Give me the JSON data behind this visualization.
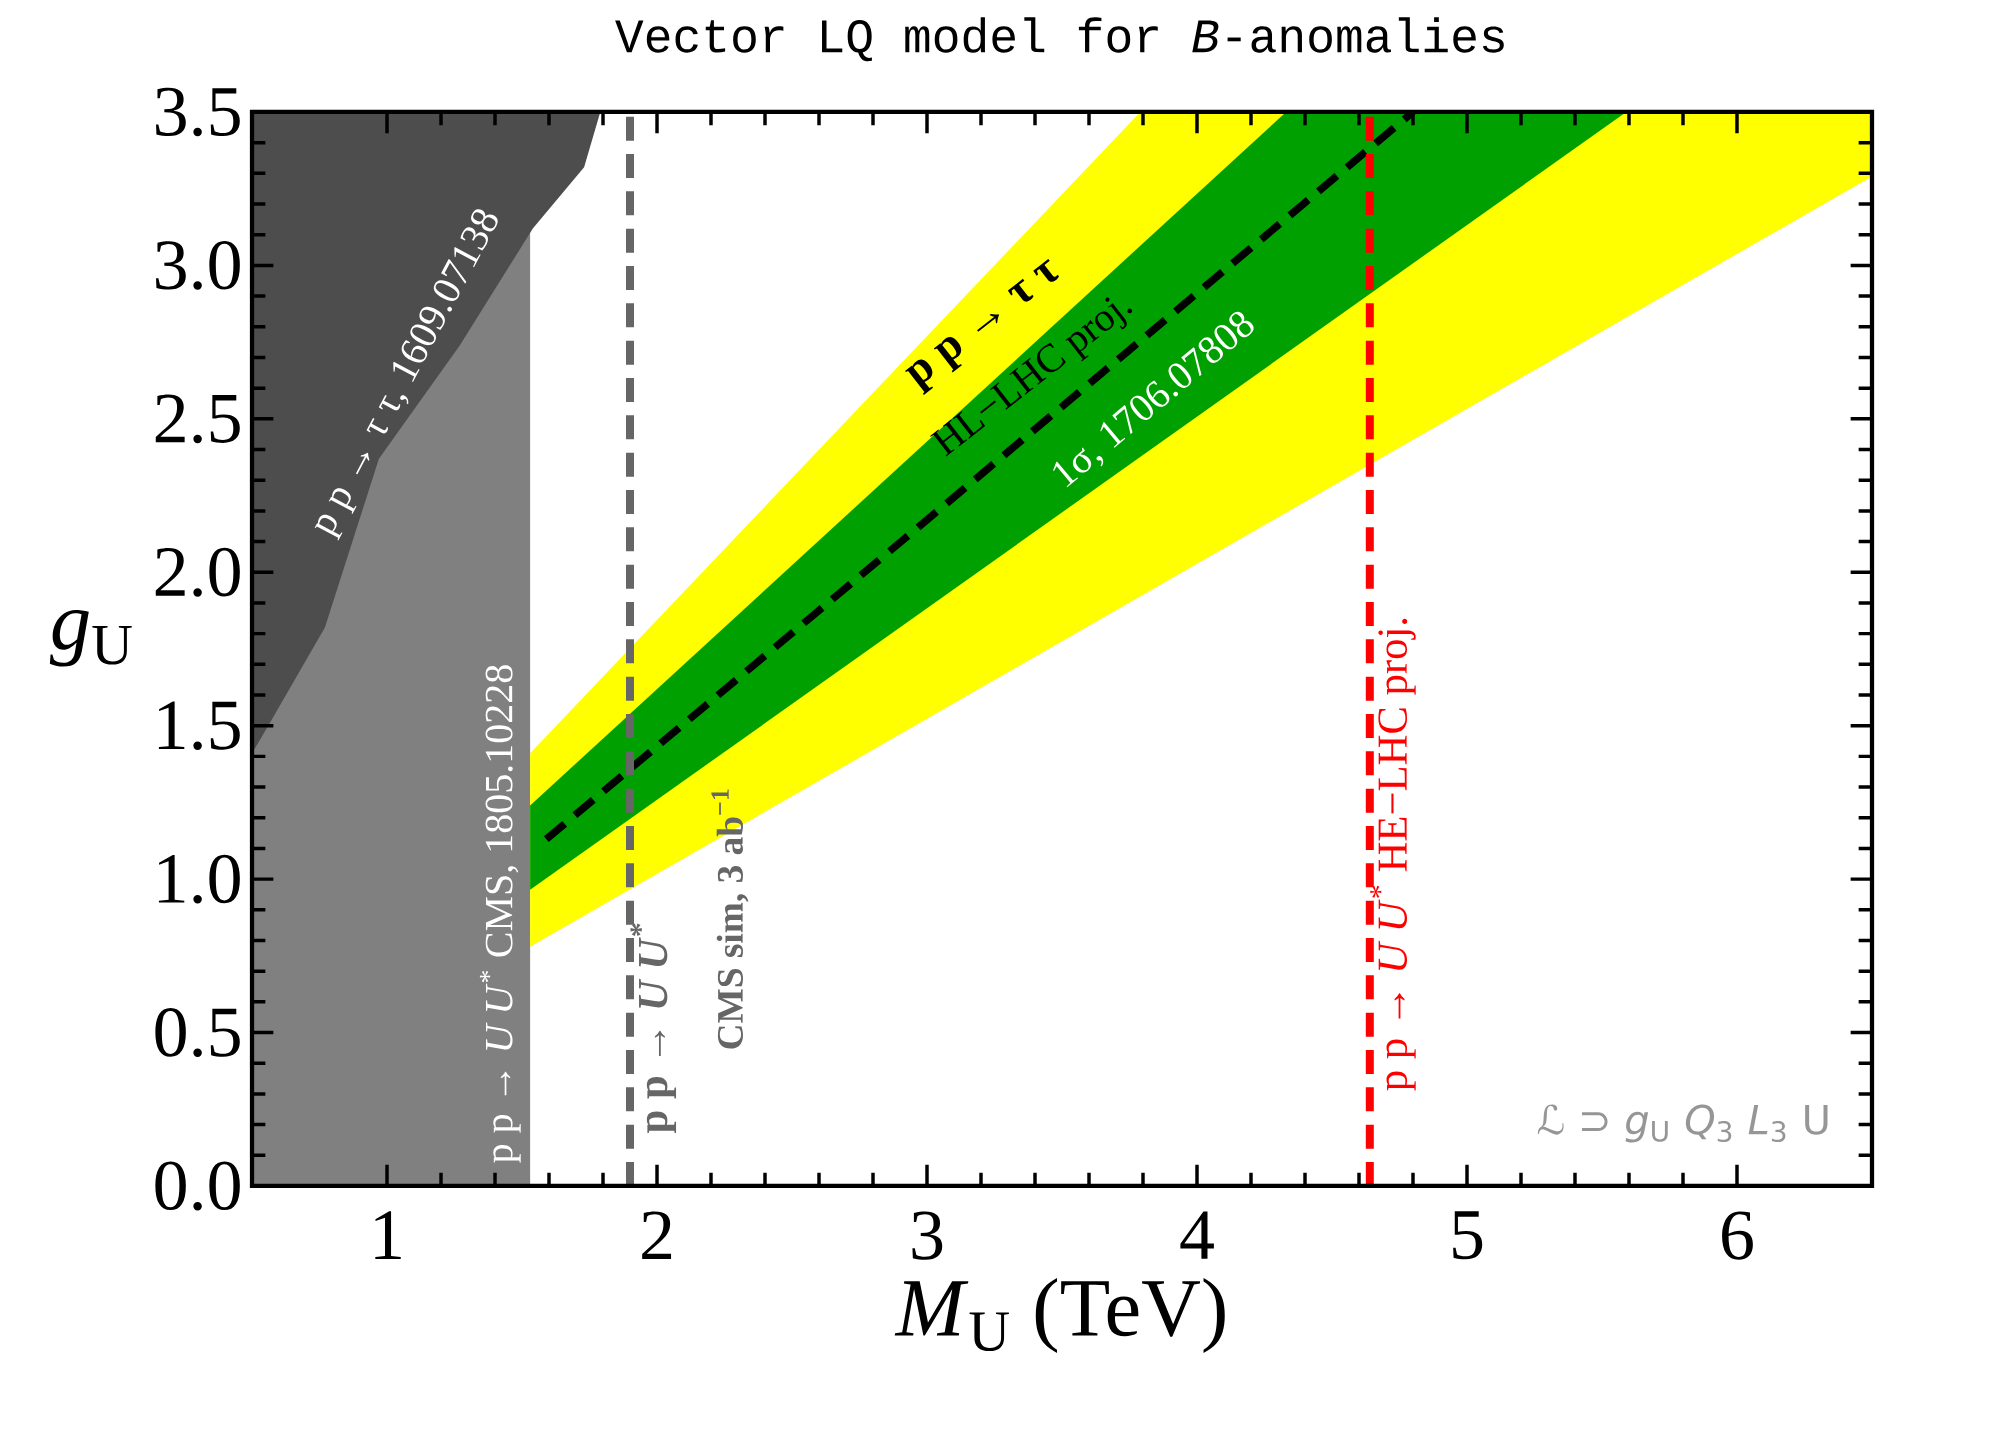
{
  "chart_data": {
    "type": "area",
    "title": "Vector LQ model for *B*-anomalies",
    "xlabel": "*M*$_{U}$ (TeV)",
    "ylabel": "*g*$_{U}$",
    "xlim": [
      0.5,
      6.5
    ],
    "ylim": [
      0,
      3.5
    ],
    "xticks": [
      1,
      2,
      3,
      4,
      5,
      6
    ],
    "yticks": [
      {
        "value": 0,
        "label": "0.0"
      },
      {
        "value": 0.5,
        "label": "0.5"
      },
      {
        "value": 1,
        "label": "1.0"
      },
      {
        "value": 1.5,
        "label": "1.5"
      },
      {
        "value": 2,
        "label": "2.0"
      },
      {
        "value": 2.5,
        "label": "2.5"
      },
      {
        "value": 3,
        "label": "3.0"
      },
      {
        "value": 3.5,
        "label": "3.5"
      }
    ],
    "bands": [
      {
        "axis": "x",
        "from": 0.5,
        "to": 1.53,
        "label": "p p → *U U*$^{*}$ CMS, 1805.10228",
        "color": "#808080"
      }
    ],
    "series": [
      {
        "color": "#4d4d4d",
        "x": [
          0.5,
          0.56,
          0.77,
          0.97,
          1.27,
          1.54,
          1.73,
          1.79,
          0.5
        ],
        "values": [
          1.41,
          1.5,
          1.82,
          2.37,
          2.74,
          3.12,
          3.32,
          3.5,
          3.5
        ]
      },
      {
        "color": "#ffff00",
        "x": [
          1.53,
          6.5,
          6.5,
          3.79,
          1.53
        ],
        "values": [
          0.78,
          3.29,
          3.5,
          3.5,
          1.41
        ]
      },
      {
        "color": "#00a000",
        "x": [
          1.53,
          5.59,
          4.33,
          1.53
        ],
        "values": [
          0.965,
          3.5,
          3.5,
          1.24
        ]
      },
      {
        "type": "line",
        "color": "#000000",
        "line_style": "dashed",
        "x": [
          1.59,
          4.8
        ],
        "values": [
          1.13,
          3.5
        ]
      }
    ],
    "ref_lines": [
      {
        "axis": "x",
        "value": 1.9,
        "label": "p p → *U U*$^{*}$",
        "color": "#666666",
        "line_style": "dashed"
      },
      {
        "axis": "x",
        "value": 4.64,
        "label": "p p → *U U*$^{*}$ HE−LHC proj.",
        "color": "#ff0000",
        "line_style": "dashed"
      }
    ],
    "annotations": [
      "p p → τ τ, 1609.07138",
      "1σ, 1706.07808",
      "p p → τ τ",
      "HL−LHC proj.",
      "CMS sim, 3 ab$^{−1}$",
      "ℒ ⊃ *g*$_{U}$ *Q*$_{3}$ *L*$_{3}$ U"
    ]
  }
}
